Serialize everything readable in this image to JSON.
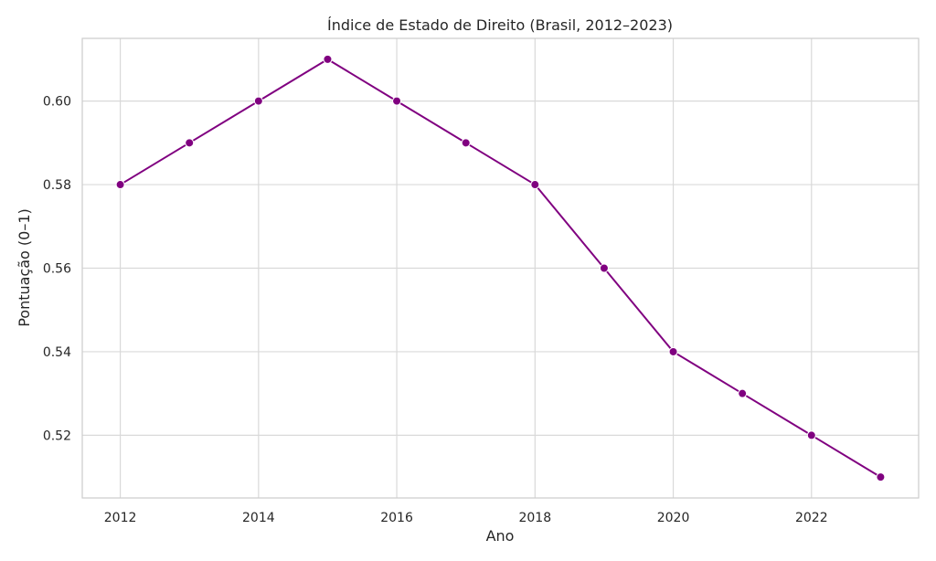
{
  "chart_data": {
    "type": "line",
    "title": "Índice de Estado de Direito (Brasil, 2012–2023)",
    "xlabel": "Ano",
    "ylabel": "Pontuação (0–1)",
    "x": [
      2012,
      2013,
      2014,
      2015,
      2016,
      2017,
      2018,
      2019,
      2020,
      2021,
      2022,
      2023
    ],
    "series": [
      {
        "values": [
          0.58,
          0.59,
          0.6,
          0.61,
          0.6,
          0.59,
          0.58,
          0.56,
          0.54,
          0.53,
          0.52,
          0.51
        ],
        "color": "#800080"
      }
    ],
    "xticks": [
      "2012",
      "2014",
      "2016",
      "2018",
      "2020",
      "2022"
    ],
    "yticks": [
      "0.52",
      "0.54",
      "0.56",
      "0.58",
      "0.60"
    ],
    "xlim": [
      2011.45,
      2023.55
    ],
    "ylim": [
      0.505,
      0.615
    ],
    "grid": true,
    "legend": "none",
    "marker": "circle"
  }
}
